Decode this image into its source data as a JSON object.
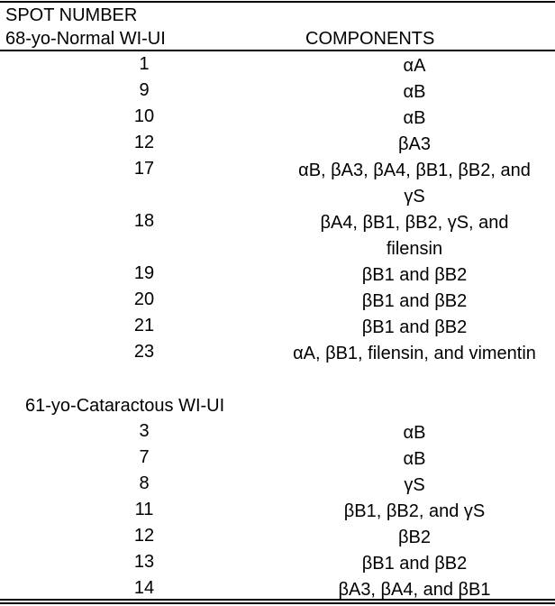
{
  "header": {
    "spot_number": "SPOT NUMBER",
    "group1": "68-yo-Normal WI-UI",
    "components": "COMPONENTS"
  },
  "group2_label": "61-yo-Cataractous WI-UI",
  "group1_rows": [
    {
      "spot": "1",
      "components": "αA"
    },
    {
      "spot": "9",
      "components": "αB"
    },
    {
      "spot": "10",
      "components": "αB"
    },
    {
      "spot": "12",
      "components": "βA3"
    },
    {
      "spot": "17",
      "components": "αB, βA3, βA4, βB1, βB2, and γS"
    },
    {
      "spot": "18",
      "components": "βA4, βB1, βB2, γS, and filensin"
    },
    {
      "spot": "19",
      "components": "βB1 and βB2"
    },
    {
      "spot": "20",
      "components": "βB1 and βB2"
    },
    {
      "spot": "21",
      "components": "βB1 and βB2"
    },
    {
      "spot": "23",
      "components": "αA, βB1, filensin, and vimentin"
    }
  ],
  "group2_rows": [
    {
      "spot": "3",
      "components": "αB"
    },
    {
      "spot": "7",
      "components": "αB"
    },
    {
      "spot": "8",
      "components": "γS"
    },
    {
      "spot": "11",
      "components": "βB1, βB2, and γS"
    },
    {
      "spot": "12",
      "components": "βB2"
    },
    {
      "spot": "13",
      "components": "βB1 and βB2"
    },
    {
      "spot": "14",
      "components": "βA3, βA4, and βB1"
    }
  ]
}
